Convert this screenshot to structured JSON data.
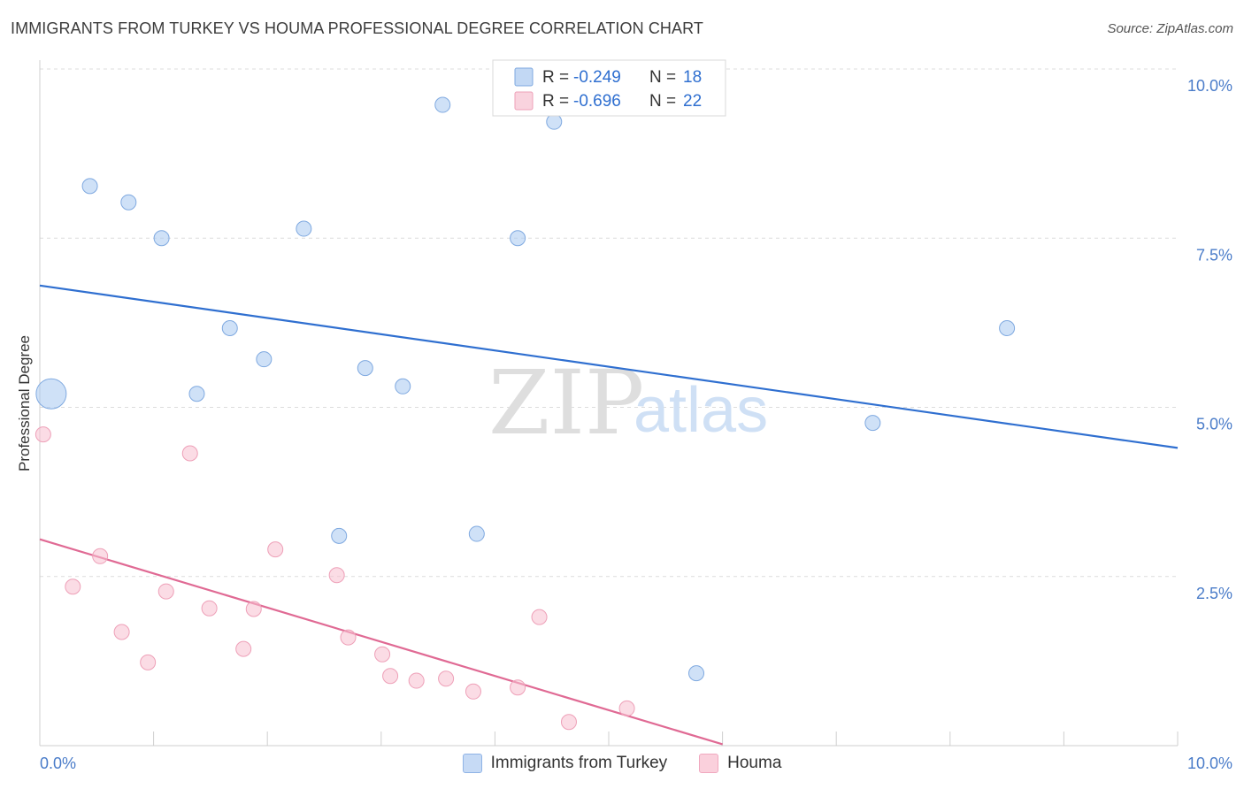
{
  "title": "IMMIGRANTS FROM TURKEY VS HOUMA PROFESSIONAL DEGREE CORRELATION CHART",
  "source": "Source: ZipAtlas.com",
  "watermark": {
    "zip": "ZIP",
    "atlas": "atlas"
  },
  "chart_data": {
    "type": "scatter",
    "ylabel": "Professional Degree",
    "xlabel": "",
    "xlim": [
      0,
      10
    ],
    "ylim": [
      0,
      10
    ],
    "x_tick_labels": [
      {
        "value": 0,
        "label": "0.0%"
      },
      {
        "value": 10,
        "label": "10.0%"
      }
    ],
    "y_tick_labels": [
      {
        "value": 2.5,
        "label": "2.5%"
      },
      {
        "value": 5,
        "label": "5.0%"
      },
      {
        "value": 7.5,
        "label": "7.5%"
      },
      {
        "value": 10,
        "label": "10.0%"
      }
    ],
    "series": [
      {
        "name": "Immigrants from Turkey",
        "color": "#a8c8f0",
        "stroke": "#7fa9e0",
        "line_color": "#2f6fd0",
        "R": "-0.249",
        "N": "18",
        "trend": {
          "x0": 0,
          "y0": 6.8,
          "x1": 10,
          "y1": 4.4
        },
        "points": [
          {
            "x": 0.1,
            "y": 5.2,
            "big": true
          },
          {
            "x": 0.44,
            "y": 8.27
          },
          {
            "x": 0.78,
            "y": 8.03
          },
          {
            "x": 1.07,
            "y": 7.5
          },
          {
            "x": 2.32,
            "y": 7.64
          },
          {
            "x": 4.2,
            "y": 7.5
          },
          {
            "x": 3.54,
            "y": 9.47
          },
          {
            "x": 4.52,
            "y": 9.22
          },
          {
            "x": 1.67,
            "y": 6.17
          },
          {
            "x": 1.97,
            "y": 5.71
          },
          {
            "x": 2.86,
            "y": 5.58
          },
          {
            "x": 3.19,
            "y": 5.31
          },
          {
            "x": 1.38,
            "y": 5.2
          },
          {
            "x": 8.5,
            "y": 6.17
          },
          {
            "x": 7.32,
            "y": 4.77
          },
          {
            "x": 2.63,
            "y": 3.1
          },
          {
            "x": 3.84,
            "y": 3.13
          },
          {
            "x": 5.77,
            "y": 1.07
          }
        ]
      },
      {
        "name": "Houma",
        "color": "#f7c0d0",
        "stroke": "#eea0b8",
        "line_color": "#e06a94",
        "R": "-0.696",
        "N": "22",
        "trend": {
          "x0": 0,
          "y0": 3.05,
          "x1": 6.0,
          "y1": 0.02
        },
        "points": [
          {
            "x": 0.03,
            "y": 4.6
          },
          {
            "x": 1.32,
            "y": 4.32
          },
          {
            "x": 0.53,
            "y": 2.8
          },
          {
            "x": 2.07,
            "y": 2.9
          },
          {
            "x": 0.29,
            "y": 2.35
          },
          {
            "x": 1.11,
            "y": 2.28
          },
          {
            "x": 2.61,
            "y": 2.52
          },
          {
            "x": 1.49,
            "y": 2.03
          },
          {
            "x": 1.88,
            "y": 2.02
          },
          {
            "x": 4.39,
            "y": 1.9
          },
          {
            "x": 0.72,
            "y": 1.68
          },
          {
            "x": 2.71,
            "y": 1.6
          },
          {
            "x": 1.79,
            "y": 1.43
          },
          {
            "x": 3.01,
            "y": 1.35
          },
          {
            "x": 0.95,
            "y": 1.23
          },
          {
            "x": 3.08,
            "y": 1.03
          },
          {
            "x": 3.31,
            "y": 0.96
          },
          {
            "x": 3.57,
            "y": 0.99
          },
          {
            "x": 3.81,
            "y": 0.8
          },
          {
            "x": 4.2,
            "y": 0.86
          },
          {
            "x": 5.16,
            "y": 0.55
          },
          {
            "x": 4.65,
            "y": 0.35
          }
        ]
      }
    ],
    "legend": {
      "r_label": "R =",
      "n_label": "N ="
    }
  }
}
